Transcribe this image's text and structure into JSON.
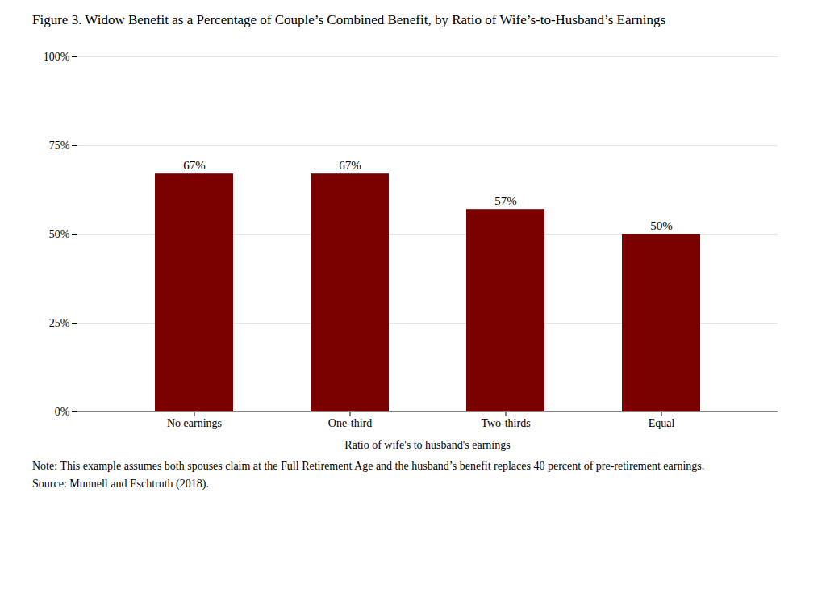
{
  "chart_data": {
    "type": "bar",
    "title": "Figure 3. Widow Benefit as a Percentage of Couple’s Combined Benefit, by Ratio of Wife’s-to-Husband’s Earnings",
    "xlabel": "Ratio of wife's to husband's earnings",
    "categories": [
      "No earnings",
      "One-third",
      "Two-thirds",
      "Equal"
    ],
    "values": [
      0.67,
      0.67,
      0.57,
      0.5
    ],
    "value_labels": [
      "67%",
      "67%",
      "57%",
      "50%"
    ],
    "data_labels": true,
    "color": "#7B0000",
    "ylim": [
      0,
      1.0
    ],
    "yticks": [
      {
        "value": 0.0,
        "label": "0%"
      },
      {
        "value": 0.25,
        "label": "25%"
      },
      {
        "value": 0.5,
        "label": "50%"
      },
      {
        "value": 0.75,
        "label": "75%"
      },
      {
        "value": 1.0,
        "label": "100%"
      }
    ],
    "grid": true,
    "annotations": [
      "Note: This example assumes both spouses claim at the Full Retirement Age and the husband’s benefit replaces 40 percent of pre-retirement earnings.",
      "Source: Munnell and Eschtruth (2018)."
    ]
  }
}
